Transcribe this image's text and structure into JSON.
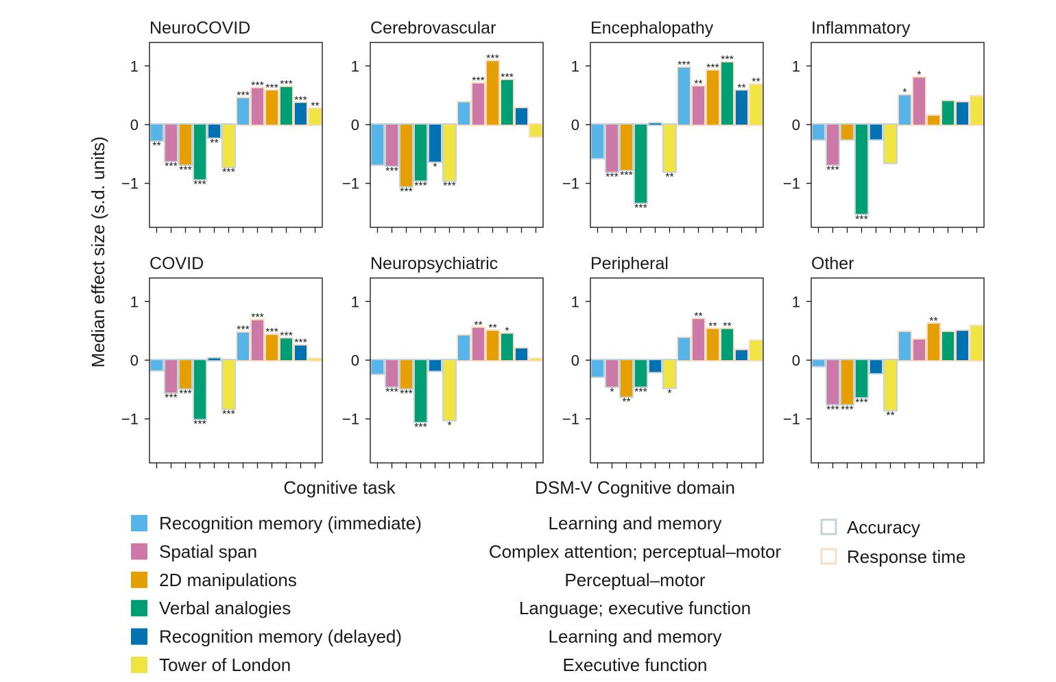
{
  "figure": {
    "ylabel": "Median effect size (s.d. units)",
    "legend_header_task": "Cognitive task",
    "legend_header_domain": "DSM-V Cognitive domain",
    "measure_legend": [
      {
        "name": "Accuracy",
        "color": "#c5d3d8"
      },
      {
        "name": "Response time",
        "color": "#f8dcc4"
      }
    ],
    "tasks": [
      {
        "name": "Recognition memory (immediate)",
        "domain": "Learning and memory",
        "color": "#56b4e9"
      },
      {
        "name": "Spatial span",
        "domain": "Complex attention; perceptual–motor",
        "color": "#cc79a7"
      },
      {
        "name": "2D manipulations",
        "domain": "Perceptual–motor",
        "color": "#e69f00"
      },
      {
        "name": "Verbal analogies",
        "domain": "Language; executive function",
        "color": "#009e73"
      },
      {
        "name": "Recognition memory (delayed)",
        "domain": "Learning and memory",
        "color": "#0072b2"
      },
      {
        "name": "Tower of London",
        "domain": "Executive function",
        "color": "#f0e442"
      }
    ]
  },
  "chart_data": [
    {
      "type": "bar",
      "title": "NeuroCOVID",
      "ylim": [
        -1.75,
        1.4
      ],
      "yticks": [
        1,
        0,
        -1
      ],
      "accuracy": [
        -0.27,
        -0.62,
        -0.68,
        -0.93,
        -0.22,
        -0.72
      ],
      "response_time": [
        0.45,
        0.62,
        0.58,
        0.64,
        0.37,
        0.27
      ],
      "accuracy_sig": [
        "**",
        "***",
        "***",
        "***",
        "**",
        "***"
      ],
      "response_time_sig": [
        "***",
        "***",
        "***",
        "***",
        "***",
        "**"
      ]
    },
    {
      "type": "bar",
      "title": "Cerebrovascular",
      "ylim": [
        -1.75,
        1.4
      ],
      "yticks": [
        1,
        0,
        -1
      ],
      "accuracy": [
        -0.68,
        -0.7,
        -1.05,
        -0.95,
        -0.63,
        -0.95
      ],
      "response_time": [
        0.38,
        0.7,
        1.08,
        0.76,
        0.28,
        -0.2
      ],
      "accuracy_sig": [
        "",
        "***",
        "***",
        "***",
        "*",
        "***"
      ],
      "response_time_sig": [
        "",
        "***",
        "***",
        "***",
        "",
        ""
      ]
    },
    {
      "type": "bar",
      "title": "Encephalopathy",
      "ylim": [
        -1.75,
        1.4
      ],
      "yticks": [
        1,
        0,
        -1
      ],
      "accuracy": [
        -0.57,
        -0.8,
        -0.77,
        -1.33,
        0.02,
        -0.8
      ],
      "response_time": [
        0.97,
        0.65,
        0.92,
        1.06,
        0.58,
        0.68
      ],
      "accuracy_sig": [
        "",
        "***",
        "***",
        "***",
        "",
        "**"
      ],
      "response_time_sig": [
        "***",
        "**",
        "***",
        "***",
        "**",
        "**"
      ]
    },
    {
      "type": "bar",
      "title": "Inflammatory",
      "ylim": [
        -1.75,
        1.4
      ],
      "yticks": [
        1,
        0,
        -1
      ],
      "accuracy": [
        -0.25,
        -0.68,
        -0.25,
        -1.52,
        -0.25,
        -0.65
      ],
      "response_time": [
        0.5,
        0.8,
        0.15,
        0.4,
        0.38,
        0.48
      ],
      "accuracy_sig": [
        "",
        "***",
        "",
        "***",
        "",
        ""
      ],
      "response_time_sig": [
        "*",
        "*",
        "",
        "",
        "",
        ""
      ]
    },
    {
      "type": "bar",
      "title": "COVID",
      "ylim": [
        -1.75,
        1.4
      ],
      "yticks": [
        1,
        0,
        -1
      ],
      "accuracy": [
        -0.17,
        -0.55,
        -0.48,
        -1.0,
        0.03,
        -0.83
      ],
      "response_time": [
        0.47,
        0.68,
        0.43,
        0.37,
        0.25,
        0.02
      ],
      "accuracy_sig": [
        "",
        "***",
        "***",
        "***",
        "",
        "***"
      ],
      "response_time_sig": [
        "***",
        "***",
        "***",
        "***",
        "***",
        ""
      ]
    },
    {
      "type": "bar",
      "title": "Neuropsychiatric",
      "ylim": [
        -1.75,
        1.4
      ],
      "yticks": [
        1,
        0,
        -1
      ],
      "accuracy": [
        -0.23,
        -0.45,
        -0.48,
        -1.05,
        -0.18,
        -1.02
      ],
      "response_time": [
        0.42,
        0.55,
        0.5,
        0.45,
        0.2,
        0.02
      ],
      "accuracy_sig": [
        "",
        "***",
        "***",
        "***",
        "",
        "*"
      ],
      "response_time_sig": [
        "",
        "**",
        "**",
        "*",
        "",
        ""
      ]
    },
    {
      "type": "bar",
      "title": "Peripheral",
      "ylim": [
        -1.75,
        1.4
      ],
      "yticks": [
        1,
        0,
        -1
      ],
      "accuracy": [
        -0.28,
        -0.45,
        -0.62,
        -0.45,
        -0.2,
        -0.47
      ],
      "response_time": [
        0.38,
        0.7,
        0.53,
        0.53,
        0.17,
        0.33
      ],
      "accuracy_sig": [
        "",
        "*",
        "**",
        "***",
        "",
        "*"
      ],
      "response_time_sig": [
        "",
        "**",
        "**",
        "**",
        "",
        ""
      ]
    },
    {
      "type": "bar",
      "title": "Other",
      "ylim": [
        -1.75,
        1.4
      ],
      "yticks": [
        1,
        0,
        -1
      ],
      "accuracy": [
        -0.1,
        -0.75,
        -0.75,
        -0.63,
        -0.22,
        -0.85
      ],
      "response_time": [
        0.48,
        0.35,
        0.62,
        0.48,
        0.5,
        0.58
      ],
      "accuracy_sig": [
        "",
        "***",
        "***",
        "***",
        "",
        "**"
      ],
      "response_time_sig": [
        "",
        "",
        "**",
        "",
        "",
        ""
      ]
    }
  ]
}
